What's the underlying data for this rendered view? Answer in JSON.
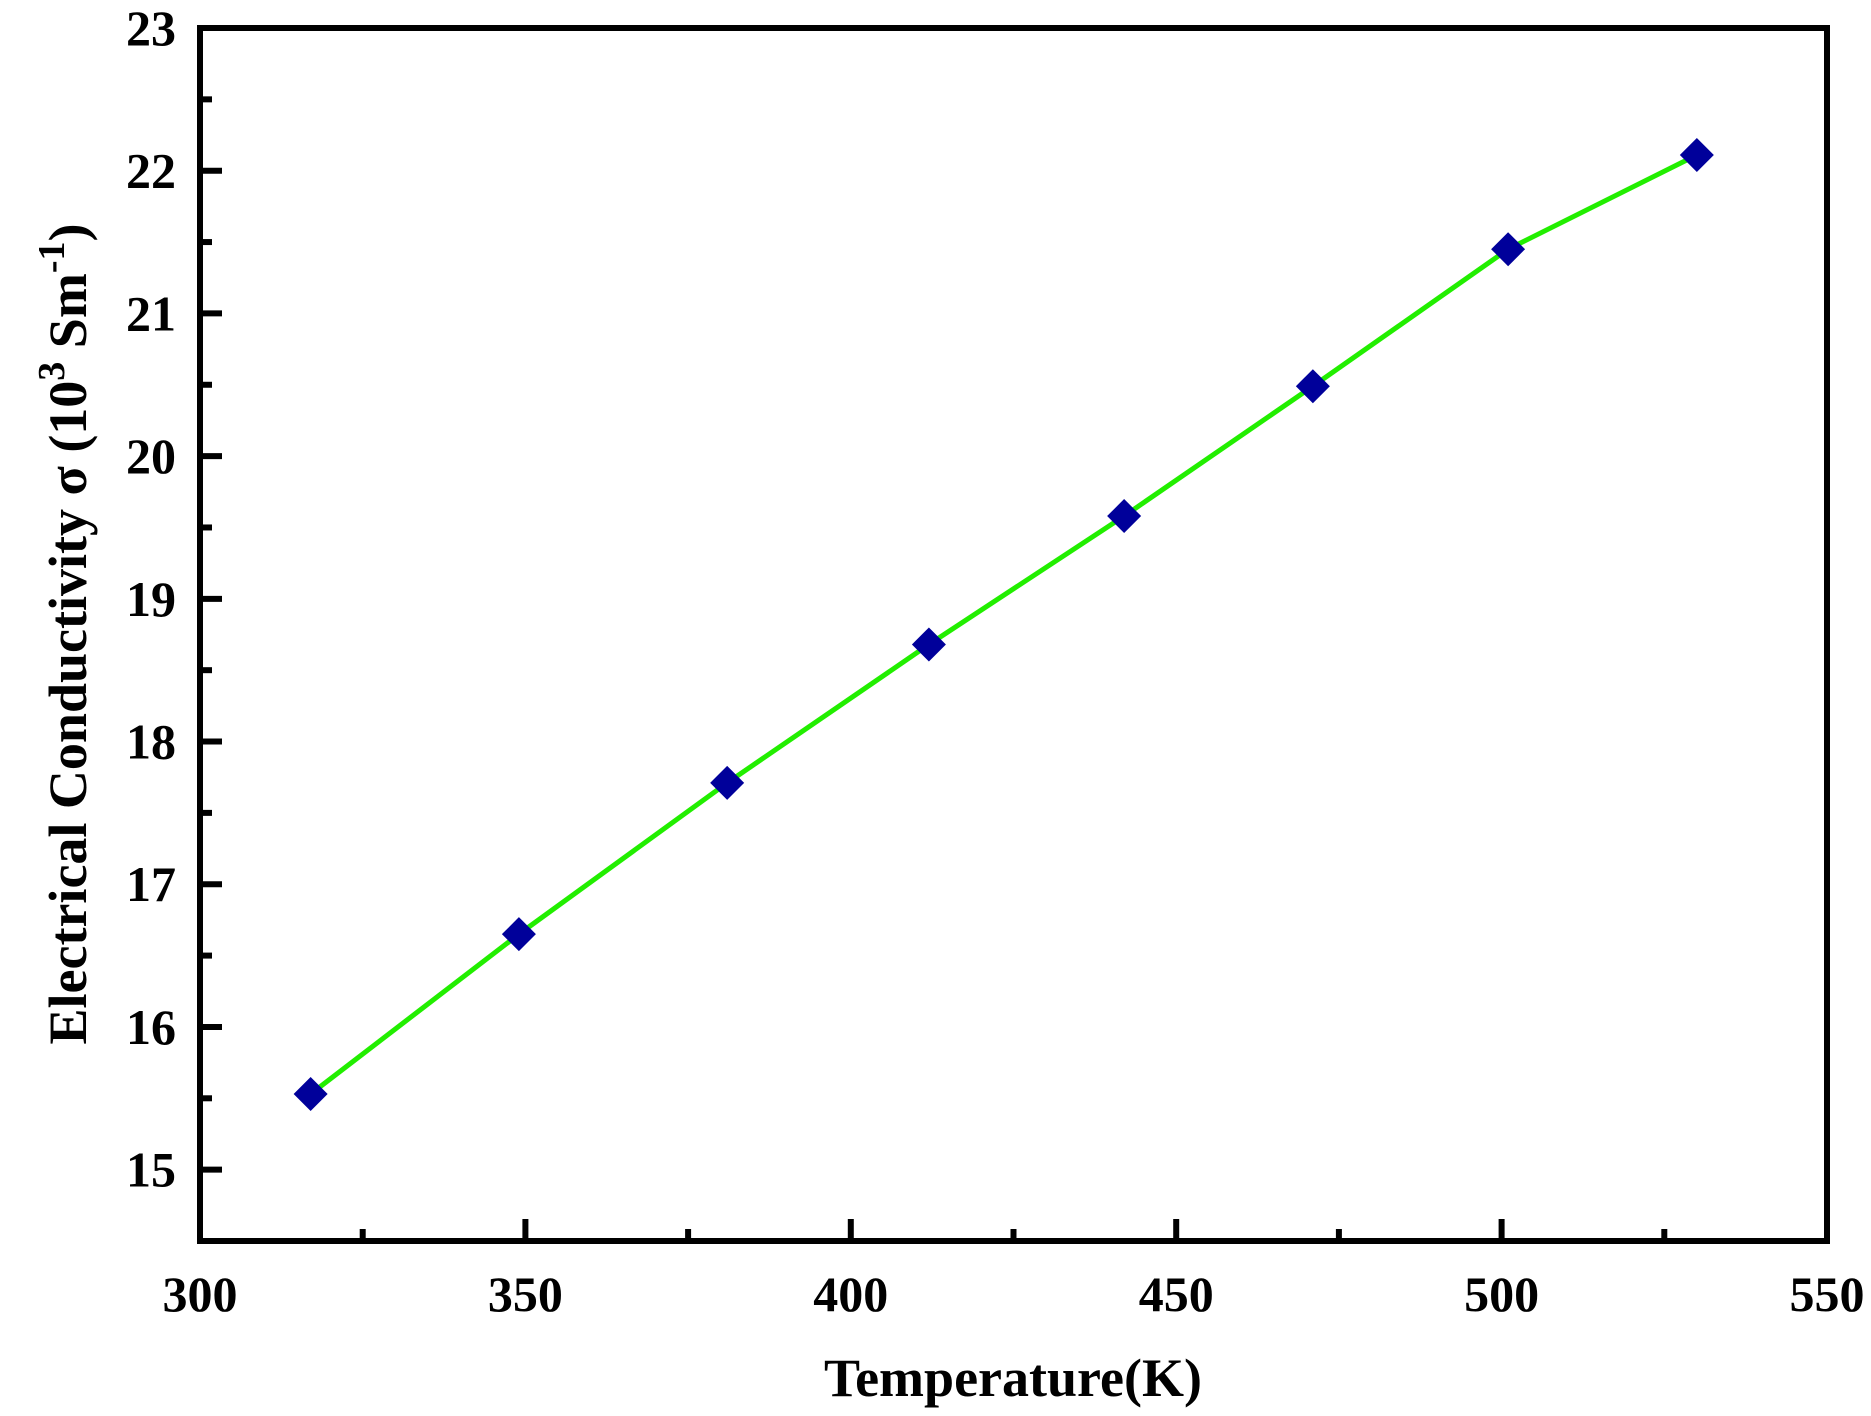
{
  "chart_data": {
    "type": "line",
    "xlabel": "Temperature(K)",
    "ylabel": {
      "prefix": "Electrical  Conductivity σ (10",
      "sup1": "3",
      "middle": " Sm",
      "sup2": "-1",
      "suffix": ")"
    },
    "xlim": [
      300,
      550
    ],
    "ylim": [
      14.5,
      23
    ],
    "x_ticks": [
      "300",
      "350",
      "400",
      "450",
      "500",
      "550"
    ],
    "y_ticks": [
      "15",
      "16",
      "17",
      "18",
      "19",
      "20",
      "21",
      "22",
      "23"
    ],
    "grid": false,
    "line_color": "#22ee00",
    "marker_color": "#00009a",
    "marker": "diamond",
    "series": [
      {
        "x": [
          317,
          349,
          381,
          412,
          442,
          471,
          501,
          530
        ],
        "y": [
          15.53,
          16.65,
          17.71,
          18.68,
          19.58,
          20.49,
          21.45,
          22.11
        ]
      }
    ]
  }
}
